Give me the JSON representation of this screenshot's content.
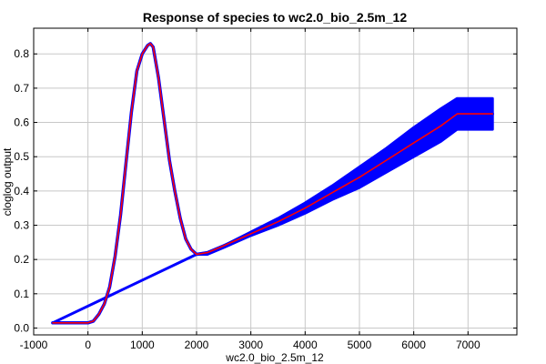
{
  "chart_data": {
    "type": "line",
    "title": "Response of species to wc2.0_bio_2.5m_12",
    "xlabel": "wc2.0_bio_2.5m_12",
    "ylabel": "cloglog output",
    "xlim": [
      -1000,
      7900
    ],
    "ylim": [
      -0.02,
      0.875
    ],
    "xticks": [
      -1000,
      0,
      1000,
      2000,
      3000,
      4000,
      5000,
      6000,
      7000
    ],
    "yticks": [
      0.0,
      0.1,
      0.2,
      0.3,
      0.4,
      0.5,
      0.6,
      0.7,
      0.8
    ],
    "grid": true,
    "colors": {
      "mean": "#ff0000",
      "band": "#0000ff"
    },
    "series": [
      {
        "role": "mean",
        "x": [
          -650,
          -300,
          0,
          100,
          200,
          300,
          400,
          500,
          600,
          700,
          800,
          900,
          1000,
          1100,
          1150,
          1200,
          1300,
          1400,
          1500,
          1600,
          1700,
          1800,
          1900,
          2000,
          2200,
          2500,
          3000,
          3500,
          4000,
          4500,
          5000,
          5500,
          6000,
          6500,
          6800,
          7450
        ],
        "y": [
          0.015,
          0.015,
          0.015,
          0.02,
          0.04,
          0.07,
          0.12,
          0.21,
          0.33,
          0.48,
          0.63,
          0.75,
          0.8,
          0.825,
          0.83,
          0.82,
          0.73,
          0.61,
          0.49,
          0.4,
          0.32,
          0.26,
          0.23,
          0.215,
          0.22,
          0.24,
          0.275,
          0.31,
          0.35,
          0.395,
          0.44,
          0.49,
          0.54,
          0.59,
          0.625,
          0.625
        ]
      },
      {
        "role": "band_upper",
        "x": [
          -650,
          2000,
          2200,
          2500,
          3000,
          3500,
          4000,
          4500,
          5000,
          5500,
          6000,
          6500,
          6800,
          7450
        ],
        "y": [
          0.015,
          0.215,
          0.22,
          0.24,
          0.28,
          0.32,
          0.365,
          0.415,
          0.47,
          0.525,
          0.585,
          0.64,
          0.67,
          0.67
        ]
      },
      {
        "role": "band_lower",
        "x": [
          -650,
          2000,
          2200,
          2500,
          3000,
          3500,
          4000,
          4500,
          5000,
          5500,
          6000,
          6500,
          6800,
          7450
        ],
        "y": [
          0.015,
          0.215,
          0.215,
          0.235,
          0.27,
          0.3,
          0.335,
          0.375,
          0.41,
          0.455,
          0.5,
          0.545,
          0.58,
          0.58
        ]
      }
    ]
  }
}
